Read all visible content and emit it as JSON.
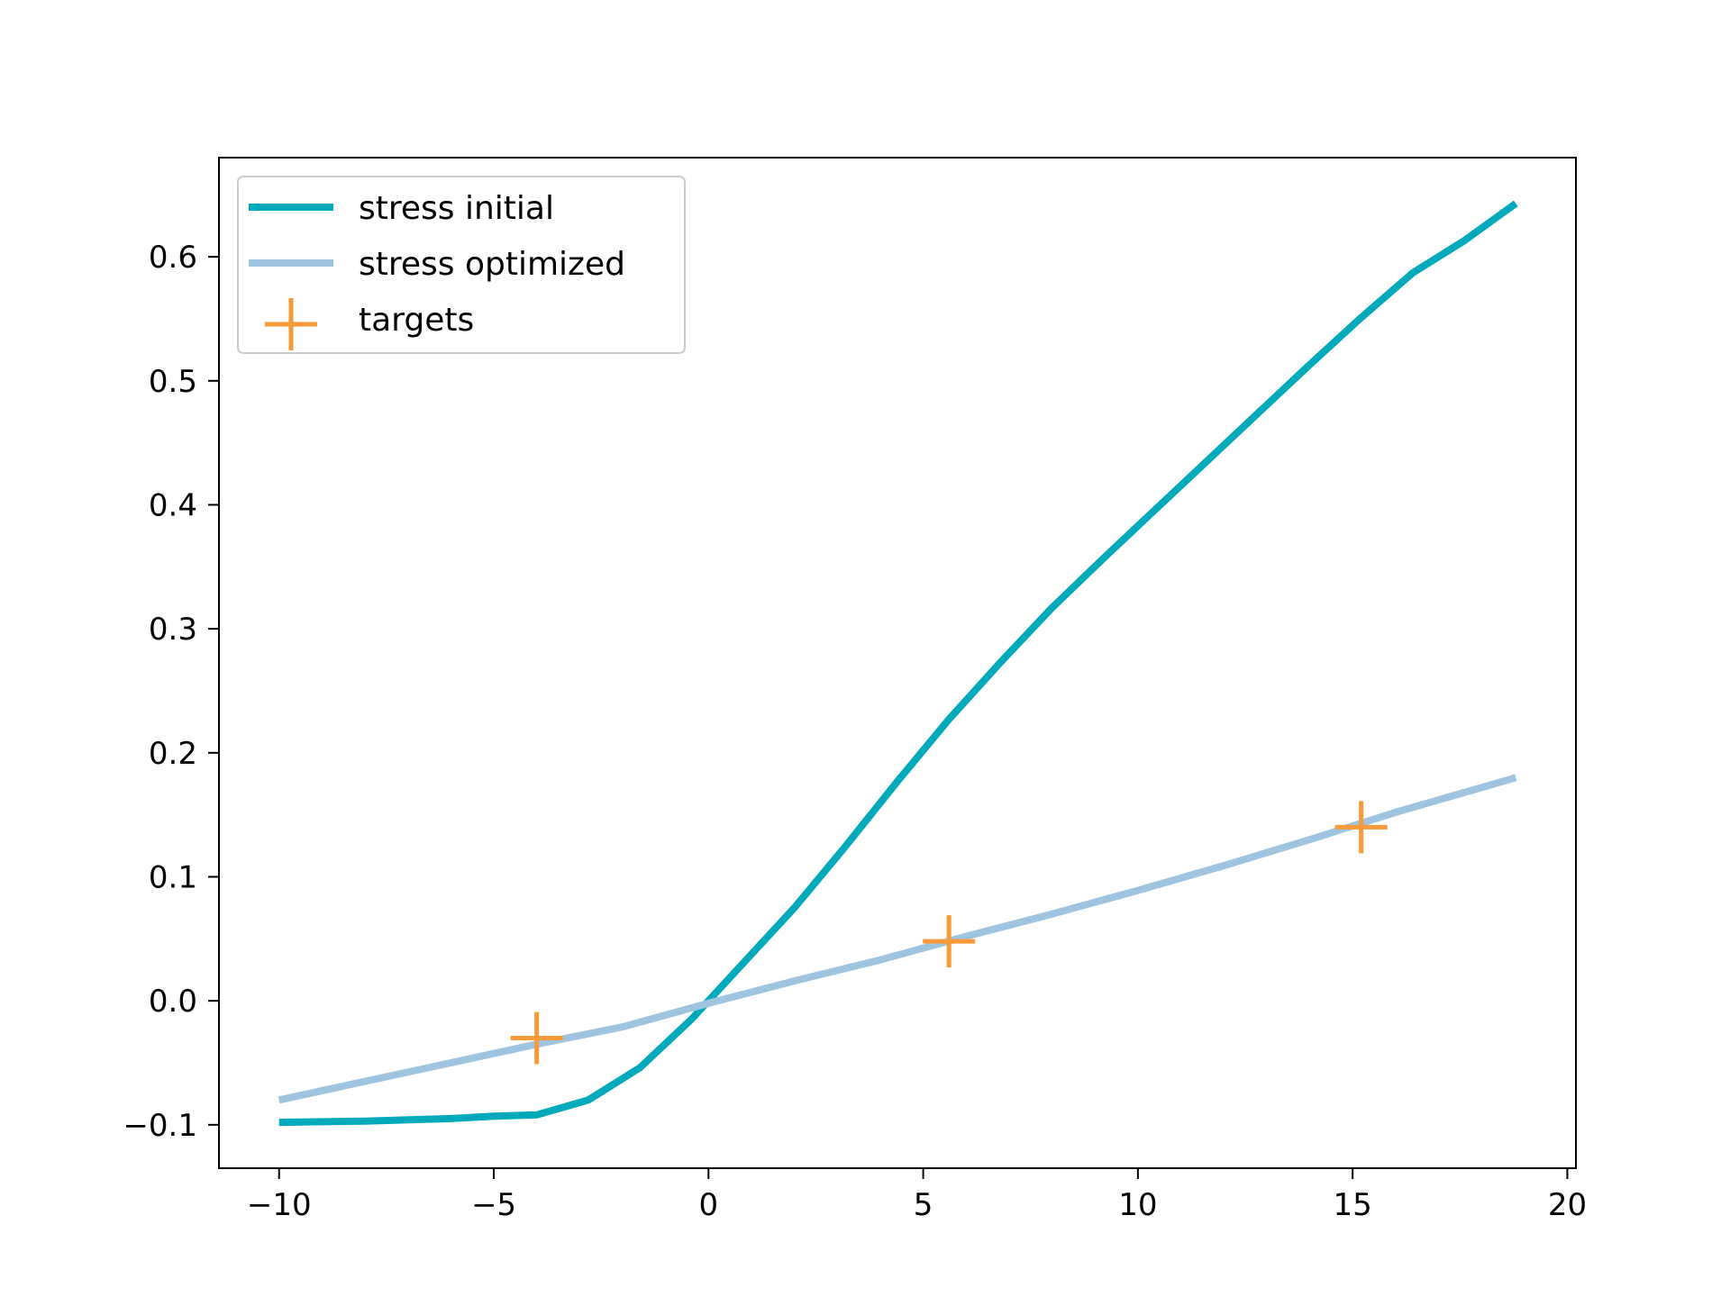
{
  "chart_data": {
    "type": "line",
    "title": "",
    "xlabel": "",
    "ylabel": "",
    "xlim": [
      -11.4,
      20.2
    ],
    "ylim": [
      -0.135,
      0.68
    ],
    "grid": false,
    "legend_position": "upper-left",
    "xticks": [
      -10,
      -5,
      0,
      5,
      10,
      15,
      20
    ],
    "xtick_labels": [
      "−10",
      "−5",
      "0",
      "5",
      "10",
      "15",
      "20"
    ],
    "yticks": [
      -0.1,
      0.0,
      0.1,
      0.2,
      0.3,
      0.4,
      0.5,
      0.6
    ],
    "ytick_labels": [
      "−0.1",
      "0.0",
      "0.1",
      "0.2",
      "0.3",
      "0.4",
      "0.5",
      "0.6"
    ],
    "series": [
      {
        "name": "stress initial",
        "kind": "line",
        "color": "#00aabb",
        "x": [
          -10,
          -8,
          -6,
          -5,
          -4,
          -2.8,
          -1.6,
          -0.4,
          0.8,
          2,
          3.2,
          4.4,
          5.6,
          6.8,
          8,
          9.2,
          10.4,
          11.6,
          12.8,
          14,
          15.2,
          16.4,
          17.6,
          18.8
        ],
        "y": [
          -0.098,
          -0.097,
          -0.095,
          -0.093,
          -0.092,
          -0.08,
          -0.054,
          -0.015,
          0.03,
          0.075,
          0.125,
          0.177,
          0.227,
          0.273,
          0.317,
          0.357,
          0.396,
          0.435,
          0.474,
          0.513,
          0.551,
          0.587,
          0.613,
          0.643
        ]
      },
      {
        "name": "stress optimized",
        "kind": "line",
        "color": "#9ec4e0",
        "x": [
          -10,
          -8,
          -6,
          -4,
          -2,
          0,
          2,
          4,
          6,
          8,
          10,
          12,
          14,
          16,
          18,
          18.8
        ],
        "y": [
          -0.08,
          -0.065,
          -0.05,
          -0.035,
          -0.021,
          -0.002,
          0.016,
          0.033,
          0.052,
          0.07,
          0.089,
          0.109,
          0.13,
          0.152,
          0.172,
          0.18
        ]
      },
      {
        "name": "targets",
        "kind": "marker",
        "marker": "plus",
        "color": "#f79a3a",
        "x": [
          -4,
          5.6,
          15.2
        ],
        "y": [
          -0.03,
          0.048,
          0.14
        ]
      }
    ]
  }
}
